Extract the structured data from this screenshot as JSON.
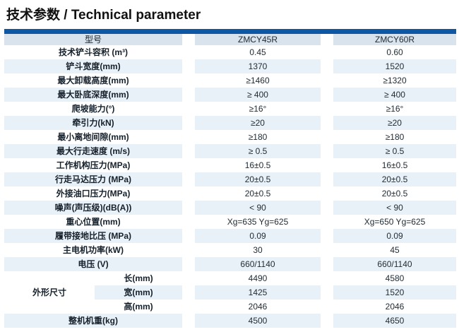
{
  "title": {
    "text": "技术参数 / Technical parameter"
  },
  "colors": {
    "accent_bar": "#0d57a5",
    "header_bg": "#d8e3ee",
    "stripe_bg": "#e9f1f8"
  },
  "table": {
    "model_label": "型号",
    "models": [
      "ZMCY45R",
      "ZMCY60R"
    ],
    "rows": [
      {
        "label": "技术铲斗容积 (m³)",
        "values": [
          "0.45",
          "0.60"
        ]
      },
      {
        "label": "铲斗宽度(mm)",
        "values": [
          "1370",
          "1520"
        ]
      },
      {
        "label": "最大卸载高度(mm)",
        "values": [
          "≥1460",
          "≥1320"
        ]
      },
      {
        "label": "最大卧底深度(mm)",
        "values": [
          "≥ 400",
          "≥ 400"
        ]
      },
      {
        "label": "爬坡能力(°)",
        "values": [
          "≥16°",
          "≥16°"
        ]
      },
      {
        "label": "牵引力(kN)",
        "values": [
          "≥20",
          "≥20"
        ]
      },
      {
        "label": "最小离地间隙(mm)",
        "values": [
          "≥180",
          "≥180"
        ]
      },
      {
        "label": "最大行走速度 (m/s)",
        "values": [
          "≥ 0.5",
          "≥ 0.5"
        ]
      },
      {
        "label": "工作机构压力(MPa)",
        "values": [
          "16±0.5",
          "16±0.5"
        ]
      },
      {
        "label": "行走马达压力 (MPa)",
        "values": [
          "20±0.5",
          "20±0.5"
        ]
      },
      {
        "label": "外接油口压力(MPa)",
        "values": [
          "20±0.5",
          "20±0.5"
        ]
      },
      {
        "label": "噪声(声压级)(dB(A))",
        "values": [
          "< 90",
          "< 90"
        ]
      },
      {
        "label": "重心位置(mm)",
        "values": [
          "Xg=635 Yg=625",
          "Xg=650 Yg=625"
        ]
      },
      {
        "label": "履带接地比压 (MPa)",
        "values": [
          "0.09",
          "0.09"
        ]
      },
      {
        "label": "主电机功率(kW)",
        "values": [
          "30",
          "45"
        ]
      },
      {
        "label": "电压 (V)",
        "values": [
          "660/1140",
          "660/1140"
        ]
      }
    ],
    "dimension_group": {
      "label": "外形尺寸",
      "rows": [
        {
          "label": "长(mm)",
          "values": [
            "4490",
            "4580"
          ]
        },
        {
          "label": "宽(mm)",
          "values": [
            "1425",
            "1520"
          ]
        },
        {
          "label": "高(mm)",
          "values": [
            "2046",
            "2046"
          ]
        }
      ]
    },
    "weight_row": {
      "label": "整机机重(kg)",
      "values": [
        "4500",
        "4650"
      ]
    }
  }
}
